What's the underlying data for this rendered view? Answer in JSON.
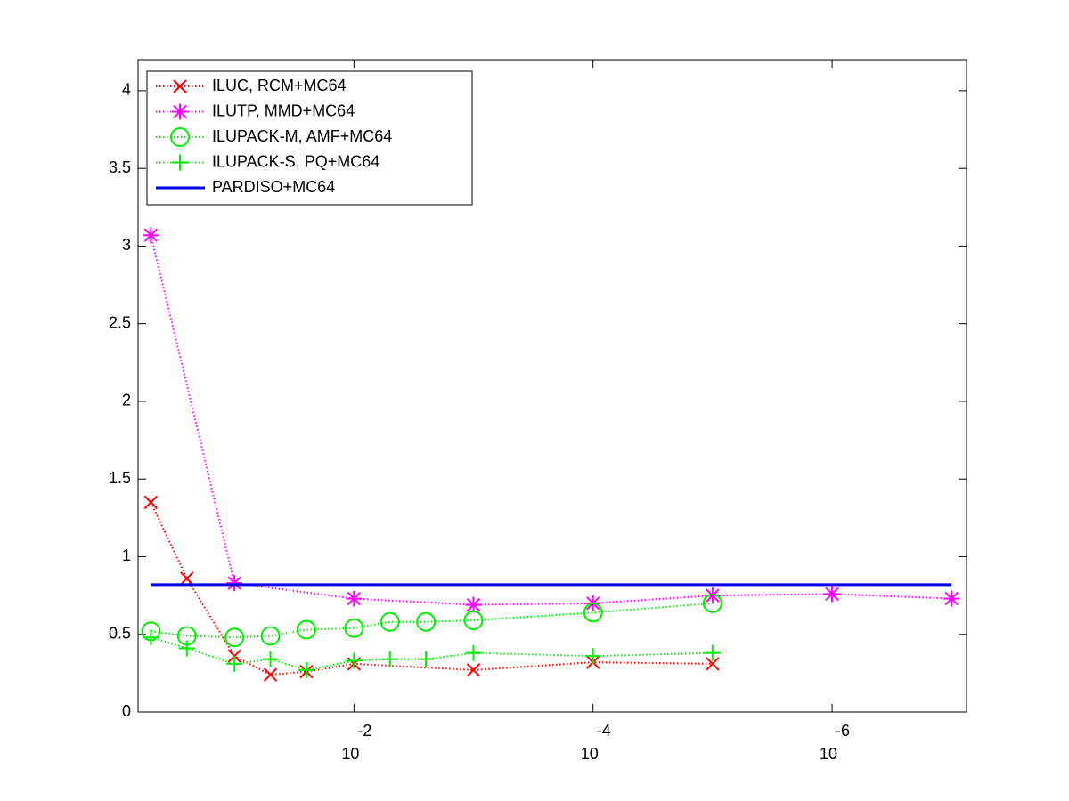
{
  "chart_data": {
    "type": "line",
    "xscale": "log",
    "xlim": [
      0.64,
      7.5e-08
    ],
    "ylim": [
      0,
      4.2
    ],
    "xticks": [
      {
        "value": 0.01,
        "label": "10",
        "exponent": "-2"
      },
      {
        "value": 0.0001,
        "label": "10",
        "exponent": "-4"
      },
      {
        "value": 1e-06,
        "label": "10",
        "exponent": "-6"
      }
    ],
    "yticks": [
      0,
      0.5,
      1,
      1.5,
      2,
      2.5,
      3,
      3.5,
      4
    ],
    "legend": "upper left",
    "series": [
      {
        "name": "ILUC, RCM+MC64",
        "color": "#ff0000",
        "marker": "x",
        "linestyle": "dotted",
        "x": [
          0.5,
          0.25,
          0.1,
          0.05,
          0.025,
          0.01,
          0.001,
          0.0001,
          1e-05
        ],
        "values": [
          1.35,
          0.86,
          0.36,
          0.24,
          0.26,
          0.31,
          0.27,
          0.32,
          0.31
        ]
      },
      {
        "name": "ILUTP, MMD+MC64",
        "color": "#ff00ff",
        "marker": "*",
        "linestyle": "dotted",
        "x": [
          0.5,
          0.1,
          0.01,
          0.001,
          0.0001,
          1e-05,
          1e-06,
          1e-07
        ],
        "values": [
          3.07,
          0.83,
          0.73,
          0.69,
          0.7,
          0.75,
          0.76,
          0.73
        ]
      },
      {
        "name": "ILUPACK-M, AMF+MC64",
        "color": "#00ee00",
        "marker": "o",
        "linestyle": "dotted",
        "x": [
          0.5,
          0.25,
          0.1,
          0.05,
          0.025,
          0.01,
          0.005,
          0.0025,
          0.001,
          0.0001,
          1e-05
        ],
        "values": [
          0.52,
          0.49,
          0.48,
          0.49,
          0.53,
          0.54,
          0.58,
          0.58,
          0.59,
          0.64,
          0.7
        ]
      },
      {
        "name": "ILUPACK-S, PQ+MC64",
        "color": "#00ee00",
        "marker": "+",
        "linestyle": "dotted",
        "x": [
          0.5,
          0.25,
          0.1,
          0.05,
          0.025,
          0.01,
          0.005,
          0.0025,
          0.001,
          0.0001,
          1e-05
        ],
        "values": [
          0.48,
          0.41,
          0.31,
          0.34,
          0.27,
          0.33,
          0.34,
          0.34,
          0.38,
          0.36,
          0.38
        ]
      },
      {
        "name": "PARDISO+MC64",
        "color": "#0000ee",
        "marker": "none",
        "linestyle": "solid",
        "x": [
          0.5,
          1e-07
        ],
        "values": [
          0.82,
          0.82
        ]
      }
    ]
  }
}
